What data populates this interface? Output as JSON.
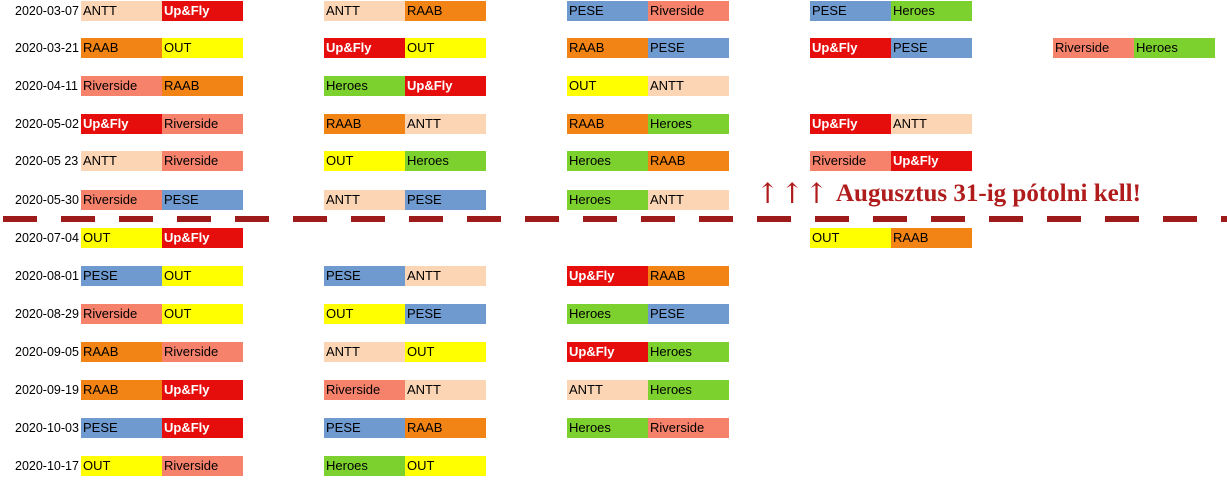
{
  "team_colors": {
    "ANTT": "#fcd5b4",
    "Up&Fly": "#e60d0d",
    "PESE": "#6f9ad0",
    "Riverside": "#f7826b",
    "RAAB": "#f28315",
    "OUT": "#ffff00",
    "Heroes": "#7cd12f"
  },
  "separator_color": "#9e1b1b",
  "rows": [
    {
      "date": "2020-03-07",
      "matches": [
        [
          "ANTT",
          "Up&Fly"
        ],
        [
          "ANTT",
          "RAAB"
        ],
        [
          "PESE",
          "Riverside"
        ],
        [
          "PESE",
          "Heroes"
        ],
        null
      ]
    },
    {
      "date": "2020-03-21",
      "matches": [
        [
          "RAAB",
          "OUT"
        ],
        [
          "Up&Fly",
          "OUT"
        ],
        [
          "RAAB",
          "PESE"
        ],
        [
          "Up&Fly",
          "PESE"
        ],
        [
          "Riverside",
          "Heroes"
        ]
      ]
    },
    {
      "date": "2020-04-11",
      "matches": [
        [
          "Riverside",
          "RAAB"
        ],
        [
          "Heroes",
          "Up&Fly"
        ],
        [
          "OUT",
          "ANTT"
        ],
        null,
        null
      ]
    },
    {
      "date": "2020-05-02",
      "matches": [
        [
          "Up&Fly",
          "Riverside"
        ],
        [
          "RAAB",
          "ANTT"
        ],
        [
          "RAAB",
          "Heroes"
        ],
        [
          "Up&Fly",
          "ANTT"
        ],
        null
      ]
    },
    {
      "date": "2020-05 23",
      "matches": [
        [
          "ANTT",
          "Riverside"
        ],
        [
          "OUT",
          "Heroes"
        ],
        [
          "Heroes",
          "RAAB"
        ],
        [
          "Riverside",
          "Up&Fly"
        ],
        null
      ]
    },
    {
      "date": "2020-05-30",
      "matches": [
        [
          "Riverside",
          "PESE"
        ],
        [
          "ANTT",
          "PESE"
        ],
        [
          "Heroes",
          "ANTT"
        ],
        null,
        null
      ]
    },
    {
      "date": "2020-07-04",
      "matches": [
        [
          "OUT",
          "Up&Fly"
        ],
        null,
        null,
        [
          "OUT",
          "RAAB"
        ],
        null
      ]
    },
    {
      "date": "2020-08-01",
      "matches": [
        [
          "PESE",
          "OUT"
        ],
        [
          "PESE",
          "ANTT"
        ],
        [
          "Up&Fly",
          "RAAB"
        ],
        null,
        null
      ]
    },
    {
      "date": "2020-08-29",
      "matches": [
        [
          "Riverside",
          "OUT"
        ],
        [
          "OUT",
          "PESE"
        ],
        [
          "Heroes",
          "PESE"
        ],
        null,
        null
      ]
    },
    {
      "date": "2020-09-05",
      "matches": [
        [
          "RAAB",
          "Riverside"
        ],
        [
          "ANTT",
          "OUT"
        ],
        [
          "Up&Fly",
          "Heroes"
        ],
        null,
        null
      ]
    },
    {
      "date": "2020-09-19",
      "matches": [
        [
          "RAAB",
          "Up&Fly"
        ],
        [
          "Riverside",
          "ANTT"
        ],
        [
          "ANTT",
          "Heroes"
        ],
        null,
        null
      ]
    },
    {
      "date": "2020-10-03",
      "matches": [
        [
          "PESE",
          "Up&Fly"
        ],
        [
          "PESE",
          "RAAB"
        ],
        [
          "Heroes",
          "Riverside"
        ],
        null,
        null
      ]
    },
    {
      "date": "2020-10-17",
      "matches": [
        [
          "OUT",
          "Riverside"
        ],
        [
          "Heroes",
          "OUT"
        ],
        null,
        null,
        null
      ]
    }
  ],
  "annotation": {
    "arrows": "↑↑↑",
    "text": "Augusztus 31-ig pótolni kell!",
    "color": "#b01c1c"
  }
}
